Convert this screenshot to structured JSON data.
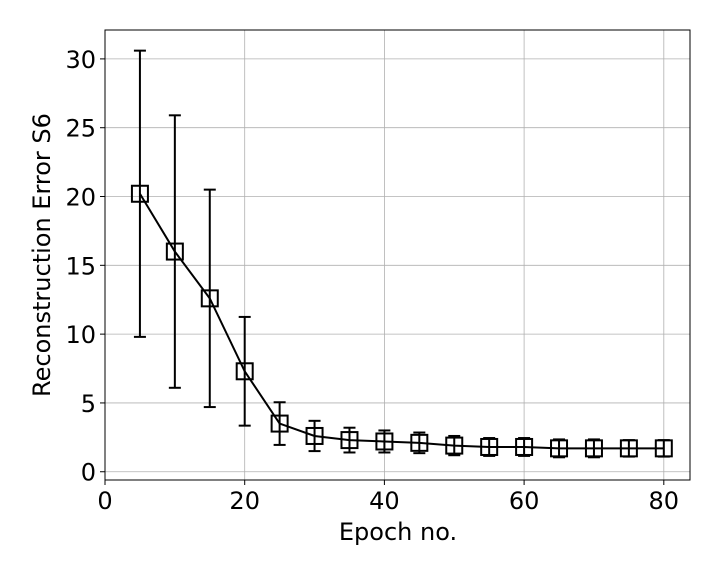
{
  "chart_data": {
    "type": "errorbar-line",
    "x_label": "Epoch no.",
    "y_label": "Reconstruction Error S6",
    "x": [
      5,
      10,
      15,
      20,
      25,
      30,
      35,
      40,
      45,
      50,
      55,
      60,
      65,
      70,
      75,
      80
    ],
    "values": [
      20.2,
      16.0,
      12.6,
      7.3,
      3.5,
      2.6,
      2.3,
      2.2,
      2.1,
      1.9,
      1.8,
      1.8,
      1.7,
      1.7,
      1.7,
      1.7
    ],
    "errors": [
      10.4,
      9.9,
      7.9,
      3.95,
      1.55,
      1.1,
      0.9,
      0.8,
      0.75,
      0.7,
      0.65,
      0.65,
      0.65,
      0.65,
      0.6,
      0.6
    ],
    "color": "#000000",
    "xlim": [
      0,
      83.75
    ],
    "ylim": [
      -0.6,
      32.1
    ],
    "xticks": [
      0,
      20,
      40,
      60,
      80
    ],
    "yticks": [
      0,
      5,
      10,
      15,
      20,
      25,
      30
    ],
    "grid": true
  }
}
